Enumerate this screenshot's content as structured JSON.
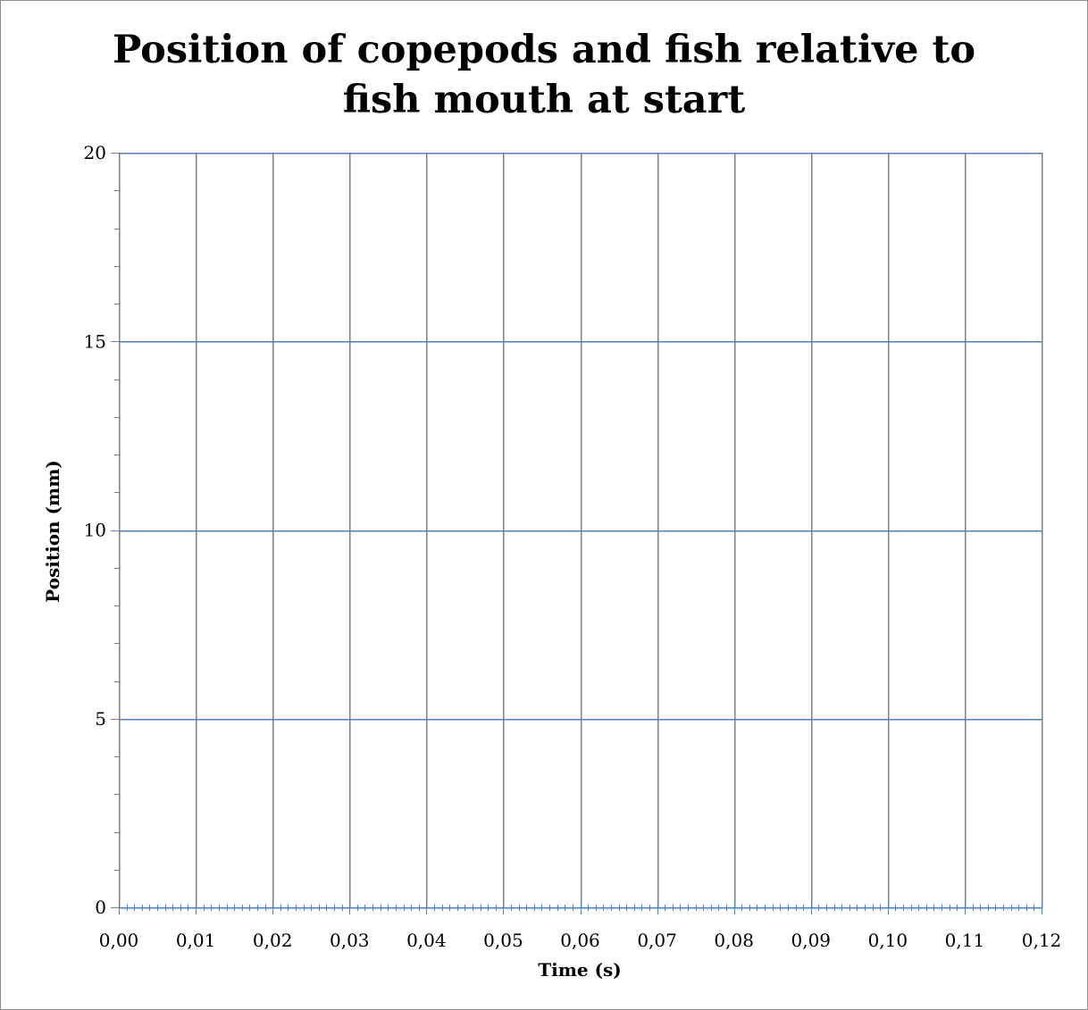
{
  "chart_data": {
    "type": "line",
    "title_lines": [
      "Position of copepods and fish relative to",
      "fish mouth at start"
    ],
    "xlabel": "Time (s)",
    "ylabel": "Position (mm)",
    "xlim": [
      0,
      0.12
    ],
    "ylim": [
      0,
      20
    ],
    "x_major_step": 0.01,
    "x_minor_step": 0.001,
    "y_major_step": 5,
    "y_minor_step": 1,
    "x_tick_labels": [
      "0,00",
      "0,01",
      "0,02",
      "0,03",
      "0,04",
      "0,05",
      "0,06",
      "0,07",
      "0,08",
      "0,09",
      "0,10",
      "0,11",
      "0,12"
    ],
    "y_tick_labels": [
      "0",
      "5",
      "10",
      "15",
      "20"
    ],
    "grid": {
      "vertical": true,
      "horizontal": true,
      "vertical_color": "#7f7f7f",
      "horizontal_color": "#4f81bd"
    },
    "axis_color": "#4f81bd",
    "legend": "none",
    "series": []
  }
}
